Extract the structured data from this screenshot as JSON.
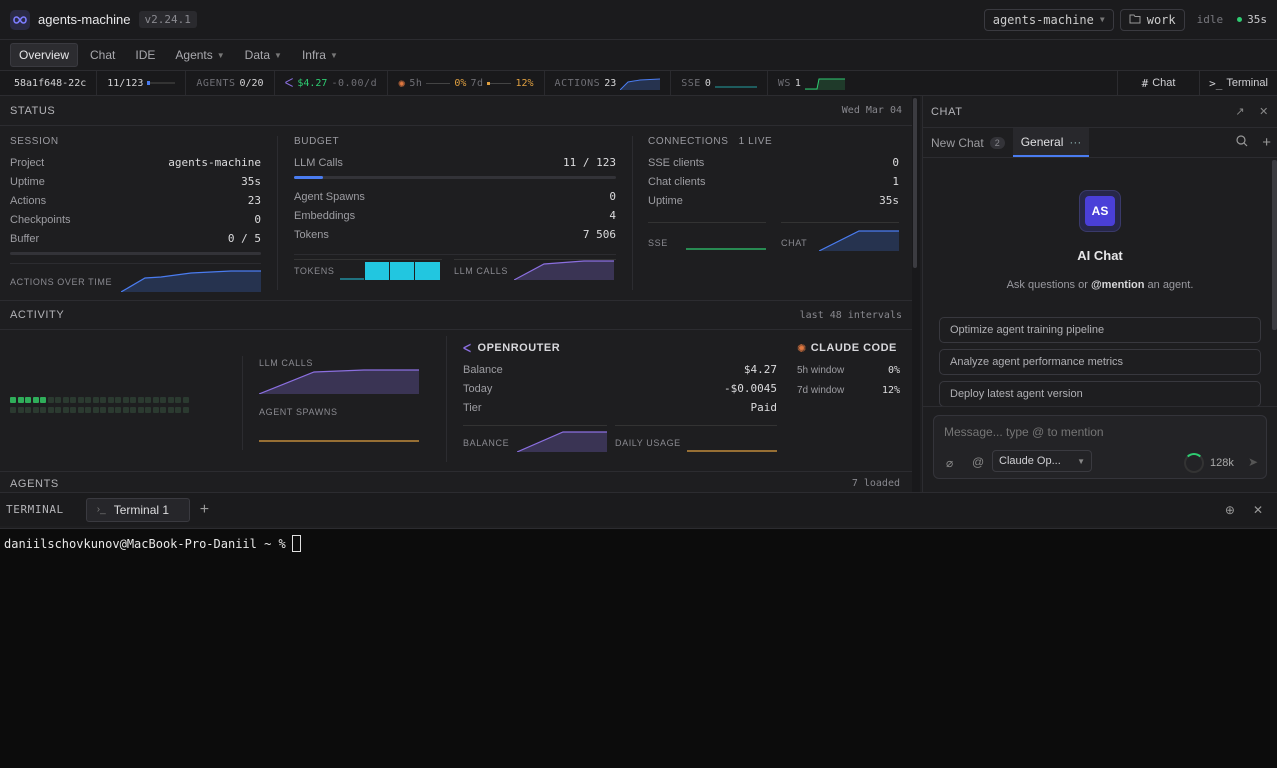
{
  "app": {
    "title": "agents-machine",
    "version": "v2.24.1",
    "workspace": "agents-machine",
    "folder": "work",
    "state": "idle",
    "elapsed": "35s"
  },
  "nav": [
    {
      "label": "Overview",
      "active": true,
      "menu": false
    },
    {
      "label": "Chat",
      "active": false,
      "menu": false
    },
    {
      "label": "IDE",
      "active": false,
      "menu": false
    },
    {
      "label": "Agents",
      "active": false,
      "menu": true
    },
    {
      "label": "Data",
      "active": false,
      "menu": true
    },
    {
      "label": "Infra",
      "active": false,
      "menu": true
    }
  ],
  "stats": {
    "hash": "58a1f648-22c",
    "progress": "11/123",
    "agents_label": "AGENTS",
    "agents_value": "0/20",
    "cost": "$4.27",
    "cost_rate": "-0.00/d",
    "w5_label": "5h",
    "w5_value": "0%",
    "w7_label": "7d",
    "w7_value": "12%",
    "actions_label": "ACTIONS",
    "actions_value": "23",
    "sse_label": "SSE",
    "sse_value": "0",
    "ws_label": "WS",
    "ws_value": "1",
    "chat_tab": "Chat",
    "terminal_tab": "Terminal"
  },
  "status": {
    "title": "STATUS",
    "date": "Wed Mar 04",
    "session": {
      "title": "SESSION",
      "rows": [
        {
          "k": "Project",
          "v": "agents-machine"
        },
        {
          "k": "Uptime",
          "v": "35s"
        },
        {
          "k": "Actions",
          "v": "23"
        },
        {
          "k": "Checkpoints",
          "v": "0"
        },
        {
          "k": "Buffer",
          "v": "0 / 5"
        }
      ],
      "chart_label": "ACTIONS OVER TIME"
    },
    "budget": {
      "title": "BUDGET",
      "llm_label": "LLM Calls",
      "llm_value": "11 / 123",
      "llm_fraction": 0.09,
      "rows": [
        {
          "k": "Agent Spawns",
          "v": "0"
        },
        {
          "k": "Embeddings",
          "v": "4"
        },
        {
          "k": "Tokens",
          "v": "7 506"
        }
      ],
      "tokens_label": "TOKENS",
      "llm_calls_label": "LLM CALLS"
    },
    "connections": {
      "title": "CONNECTIONS",
      "live": "1 LIVE",
      "rows": [
        {
          "k": "SSE clients",
          "v": "0"
        },
        {
          "k": "Chat clients",
          "v": "1"
        },
        {
          "k": "Uptime",
          "v": "35s"
        }
      ],
      "sse_label": "SSE",
      "chat_label": "CHAT"
    }
  },
  "activity": {
    "title": "ACTIVITY",
    "range": "last 48 intervals",
    "llm_calls_label": "LLM CALLS",
    "agent_spawns_label": "AGENT SPAWNS",
    "openrouter": {
      "title": "OPENROUTER",
      "rows": [
        {
          "k": "Balance",
          "v": "$4.27"
        },
        {
          "k": "Today",
          "v": "-$0.0045"
        },
        {
          "k": "Tier",
          "v": "Paid"
        }
      ],
      "balance_label": "BALANCE",
      "daily_label": "DAILY USAGE"
    },
    "claude": {
      "title": "CLAUDE CODE",
      "rows": [
        {
          "k": "5h window",
          "v": "0%"
        },
        {
          "k": "7d window",
          "v": "12%"
        }
      ]
    }
  },
  "agents": {
    "title": "AGENTS",
    "loaded": "7 loaded"
  },
  "chat": {
    "title": "CHAT",
    "tabs": [
      {
        "label": "New Chat",
        "count": "2"
      },
      {
        "label": "General"
      }
    ],
    "avatar": "AS",
    "name": "AI Chat",
    "subtitle_pre": "Ask questions or ",
    "subtitle_mention": "@mention",
    "subtitle_post": " an agent.",
    "suggestions": [
      "Optimize agent training pipeline",
      "Analyze agent performance metrics",
      "Deploy latest agent version"
    ],
    "placeholder": "Message... type @ to mention",
    "model": "Claude Op...",
    "context": "128k"
  },
  "terminal": {
    "title": "TERMINAL",
    "tab": "Terminal 1",
    "prompt": "daniilschovkunov@MacBook-Pro-Daniil ~ %"
  },
  "colors": {
    "accent": "#4a7cf0",
    "purple": "#8b6fe0",
    "cyan": "#22c6e0",
    "green": "#2ecc71",
    "orange": "#e0a040"
  }
}
